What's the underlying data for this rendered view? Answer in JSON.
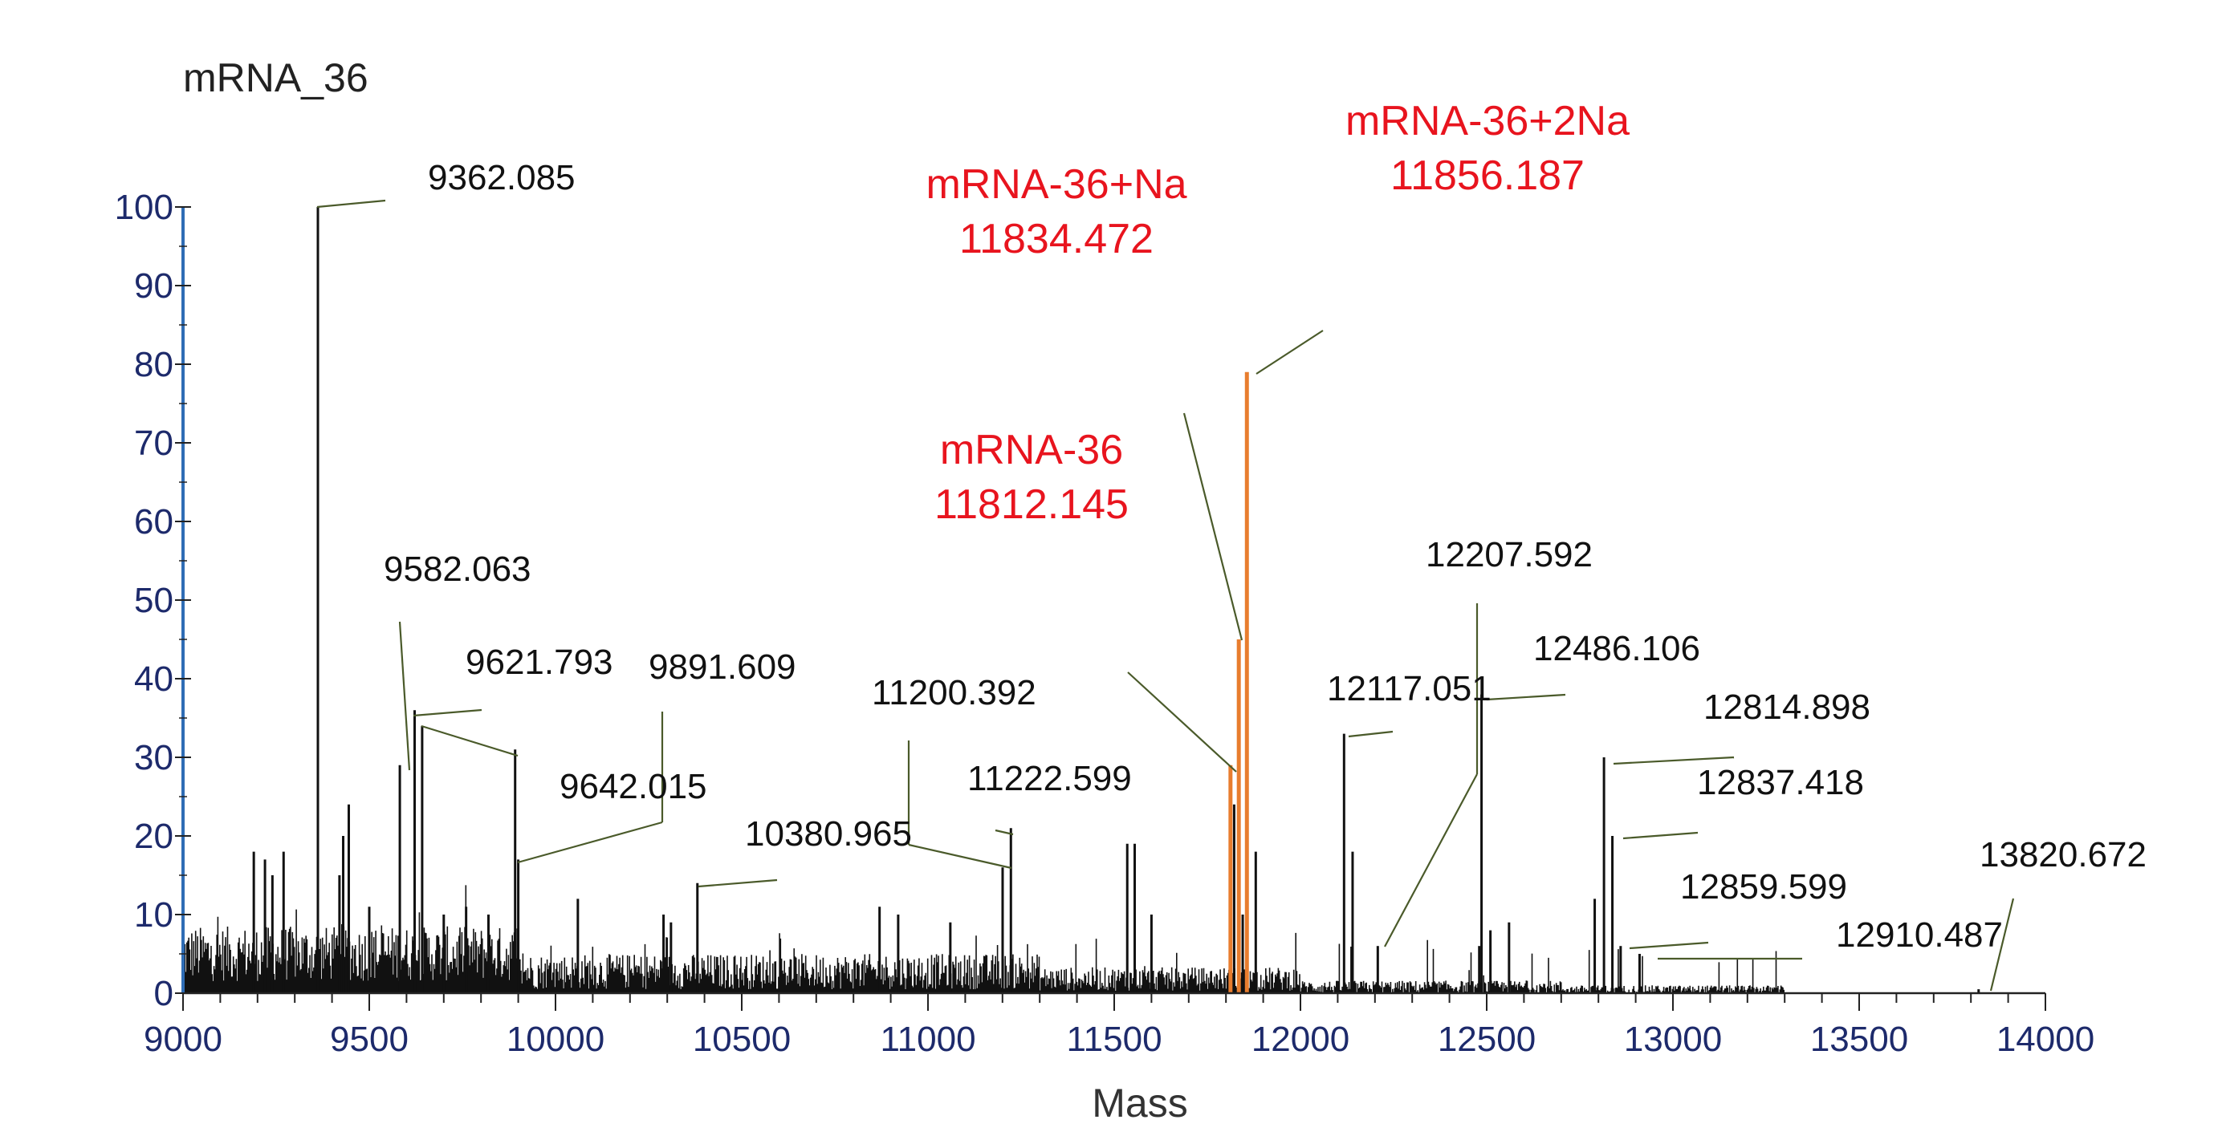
{
  "chart_data": {
    "type": "bar",
    "title": "mRNA_36",
    "xlabel": "Mass",
    "ylabel": "",
    "xlim": [
      9000,
      14000
    ],
    "ylim": [
      0,
      100
    ],
    "x_ticks": [
      "9000",
      "9500",
      "10000",
      "10500",
      "11000",
      "11500",
      "12000",
      "12500",
      "13000",
      "13500",
      "14000"
    ],
    "y_ticks": [
      "0",
      "10",
      "20",
      "30",
      "40",
      "50",
      "60",
      "70",
      "80",
      "90",
      "100"
    ],
    "grid": false,
    "legend": "none",
    "colors": {
      "axis": "#2f6db5",
      "tick_label": "#1d2a6b",
      "peak": "#111111",
      "highlight": "#e87d2e",
      "annotation_red": "#e8141e",
      "leader": "#4a5a2a"
    },
    "peaks": [
      {
        "x": 9362.085,
        "y": 100
      },
      {
        "x": 9582.063,
        "y": 29
      },
      {
        "x": 9621.793,
        "y": 36
      },
      {
        "x": 9642.015,
        "y": 34
      },
      {
        "x": 9891.609,
        "y": 31
      },
      {
        "x": 9900.0,
        "y": 17
      },
      {
        "x": 10380.965,
        "y": 14
      },
      {
        "x": 11200.392,
        "y": 16
      },
      {
        "x": 11222.599,
        "y": 21
      },
      {
        "x": 11535.0,
        "y": 19
      },
      {
        "x": 11555.0,
        "y": 19
      },
      {
        "x": 11812.145,
        "y": 29,
        "highlight": true
      },
      {
        "x": 11834.472,
        "y": 45,
        "highlight": true
      },
      {
        "x": 11856.187,
        "y": 79,
        "highlight": true
      },
      {
        "x": 11822.0,
        "y": 24
      },
      {
        "x": 11845.0,
        "y": 10
      },
      {
        "x": 11880.0,
        "y": 18
      },
      {
        "x": 12117.051,
        "y": 33
      },
      {
        "x": 12140.0,
        "y": 18
      },
      {
        "x": 12207.592,
        "y": 6
      },
      {
        "x": 12486.106,
        "y": 38
      },
      {
        "x": 12480.0,
        "y": 6
      },
      {
        "x": 12510.0,
        "y": 8
      },
      {
        "x": 12560.0,
        "y": 9
      },
      {
        "x": 12790.0,
        "y": 12
      },
      {
        "x": 12814.898,
        "y": 30
      },
      {
        "x": 12837.418,
        "y": 20
      },
      {
        "x": 12859.599,
        "y": 6
      },
      {
        "x": 12910.487,
        "y": 5
      },
      {
        "x": 13820.672,
        "y": 0.5
      },
      {
        "x": 9190.0,
        "y": 18
      },
      {
        "x": 9220.0,
        "y": 17
      },
      {
        "x": 9240.0,
        "y": 15
      },
      {
        "x": 9270.0,
        "y": 18
      },
      {
        "x": 9430.0,
        "y": 20
      },
      {
        "x": 9445.0,
        "y": 24
      },
      {
        "x": 9420.0,
        "y": 15
      },
      {
        "x": 9500.0,
        "y": 11
      },
      {
        "x": 9700.0,
        "y": 10
      },
      {
        "x": 9760.0,
        "y": 11
      },
      {
        "x": 9820.0,
        "y": 10
      },
      {
        "x": 10060.0,
        "y": 12
      },
      {
        "x": 10290.0,
        "y": 10
      },
      {
        "x": 10310.0,
        "y": 9
      },
      {
        "x": 10870.0,
        "y": 11
      },
      {
        "x": 10920.0,
        "y": 10
      },
      {
        "x": 11060.0,
        "y": 9
      },
      {
        "x": 11600.0,
        "y": 10
      }
    ],
    "annotations": [
      {
        "text": "9362.085",
        "color": "black"
      },
      {
        "text": "9582.063",
        "color": "black"
      },
      {
        "text": "9621.793",
        "color": "black"
      },
      {
        "text": "9891.609",
        "color": "black"
      },
      {
        "text": "9642.015",
        "color": "black"
      },
      {
        "text": "11200.392",
        "color": "black"
      },
      {
        "text": "11222.599",
        "color": "black"
      },
      {
        "text": "10380.965",
        "color": "black"
      },
      {
        "text": "12207.592",
        "color": "black"
      },
      {
        "text": "12486.106",
        "color": "black"
      },
      {
        "text": "12117.051",
        "color": "black"
      },
      {
        "text": "12814.898",
        "color": "black"
      },
      {
        "text": "12837.418",
        "color": "black"
      },
      {
        "text": "12859.599",
        "color": "black"
      },
      {
        "text": "12910.487",
        "color": "black"
      },
      {
        "text": "13820.672",
        "color": "black"
      },
      {
        "text": "mRNA-36+Na",
        "color": "red"
      },
      {
        "text": "11834.472",
        "color": "red"
      },
      {
        "text": "mRNA-36+2Na",
        "color": "red"
      },
      {
        "text": "11856.187",
        "color": "red"
      },
      {
        "text": "mRNA-36",
        "color": "red"
      },
      {
        "text": "11812.145",
        "color": "red"
      }
    ]
  }
}
